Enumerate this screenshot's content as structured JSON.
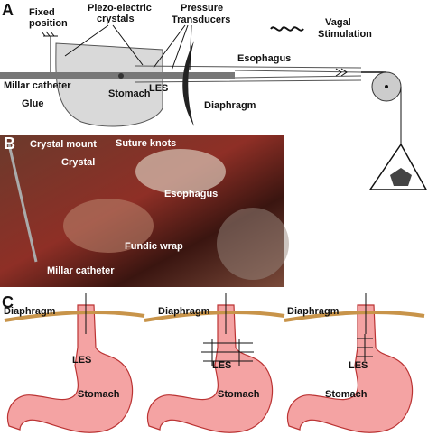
{
  "panel_a": {
    "label": "A",
    "fixed_position": [
      "Fixed",
      "position"
    ],
    "piezo": [
      "Piezo-electric",
      "crystals"
    ],
    "pressure": [
      "Pressure",
      "Transducers"
    ],
    "vagal": [
      "Vagal",
      "Stimulation"
    ],
    "esophagus": "Esophagus",
    "millar": "Millar catheter",
    "glue": "Glue",
    "stomach": "Stomach",
    "les": "LES",
    "diaphragm": "Diaphragm"
  },
  "panel_b": {
    "label": "B",
    "crystal_mount": "Crystal mount",
    "crystal": "Crystal",
    "suture_knots": "Suture knots",
    "esophagus": "Esophagus",
    "fundic_wrap": "Fundic wrap",
    "millar": "Millar catheter"
  },
  "panel_c": {
    "label": "C",
    "figures": [
      {
        "diaphragm": "Diaphragm",
        "les": "LES",
        "stomach": "Stomach"
      },
      {
        "diaphragm": "Diaphragm",
        "les": "LES",
        "stomach": "Stomach"
      },
      {
        "diaphragm": "Diaphragm",
        "les": "LES",
        "stomach": "Stomach"
      }
    ]
  }
}
